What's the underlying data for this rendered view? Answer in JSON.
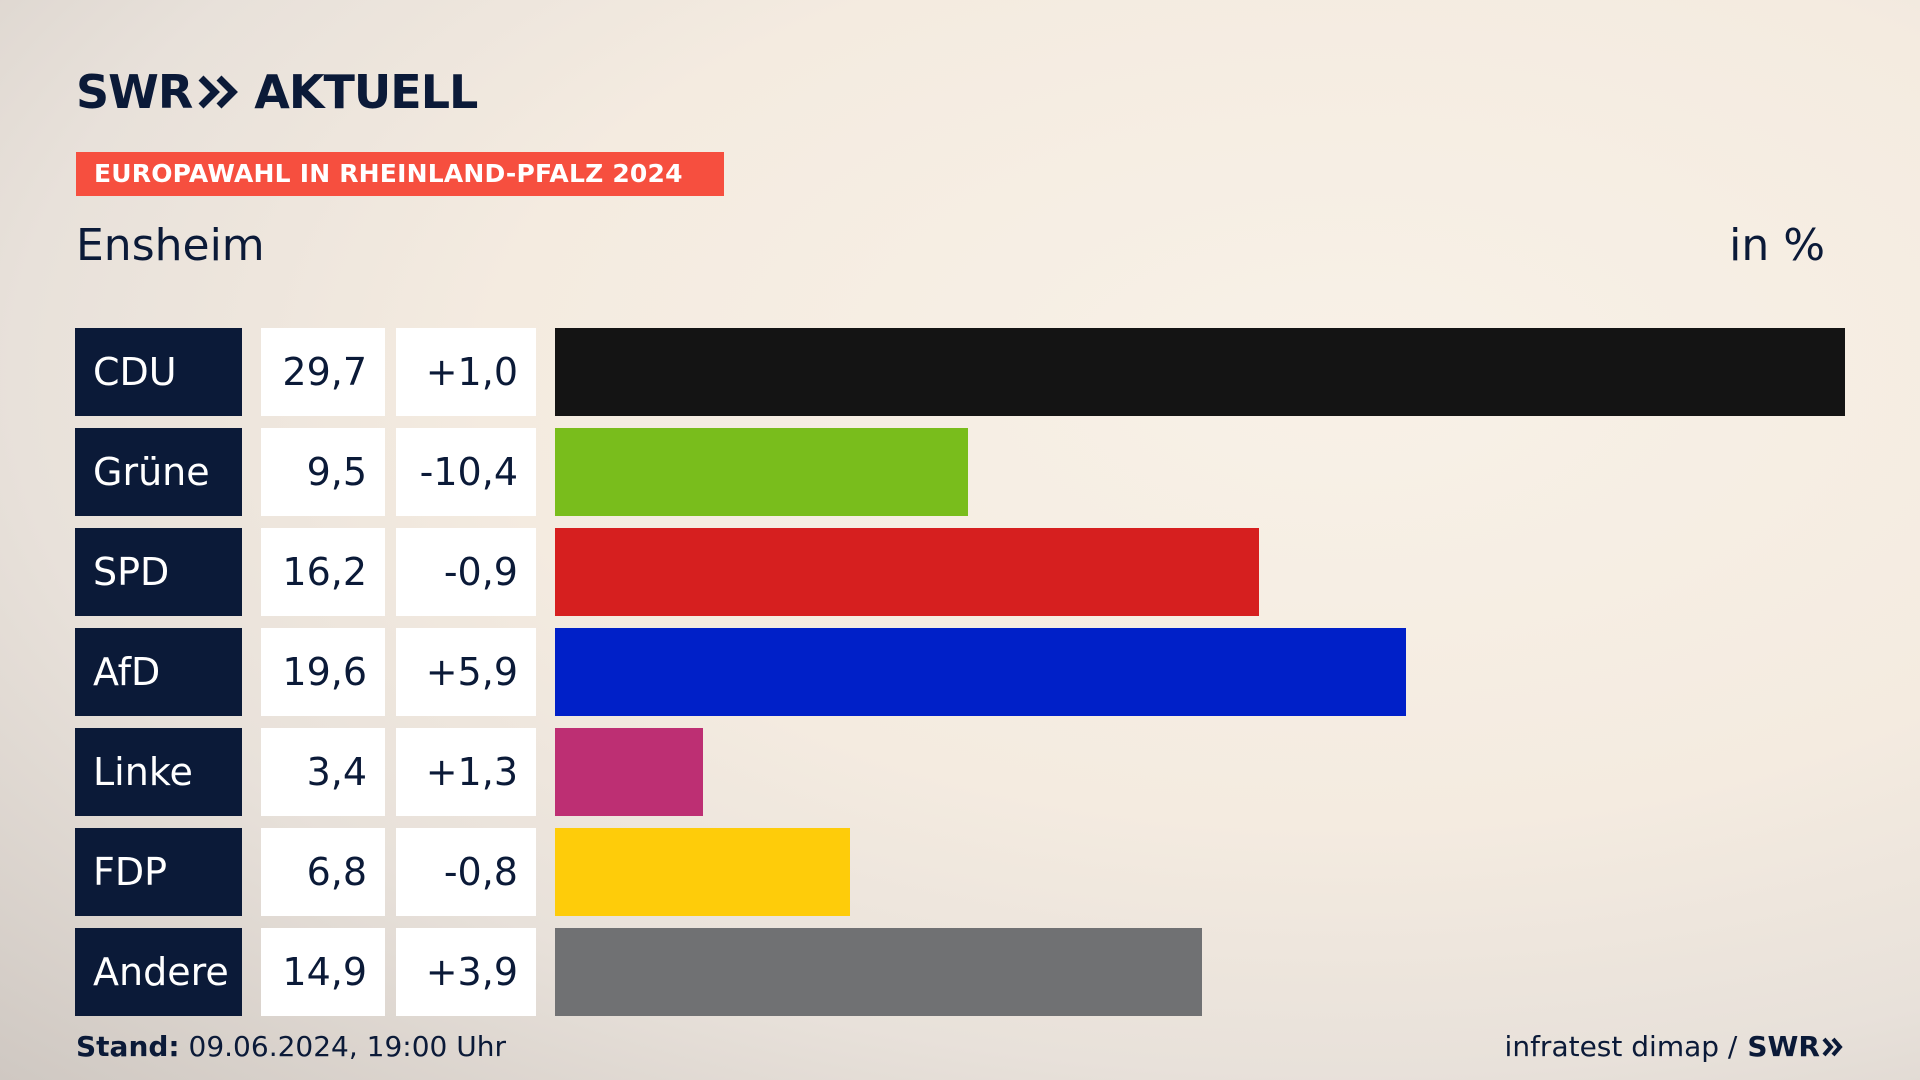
{
  "header": {
    "logo_brand": "SWR",
    "logo_product": "AKTUELL",
    "tag": "EUROPAWAHL IN RHEINLAND-PFALZ 2024",
    "region": "Ensheim",
    "unit": "in %"
  },
  "colors": {
    "navy": "#0b1a38",
    "tag": "#f64f3f"
  },
  "chart_data": {
    "type": "bar",
    "orientation": "horizontal",
    "title": "Europawahl in Rheinland-Pfalz 2024 – Ensheim",
    "unit": "in %",
    "categories": [
      "CDU",
      "Grüne",
      "SPD",
      "AfD",
      "Linke",
      "FDP",
      "Andere"
    ],
    "values": [
      29.7,
      9.5,
      16.2,
      19.6,
      3.4,
      6.8,
      14.9
    ],
    "value_labels": [
      "29,7",
      "9,5",
      "16,2",
      "19,6",
      "3,4",
      "6,8",
      "14,9"
    ],
    "changes": [
      1.0,
      -10.4,
      -0.9,
      5.9,
      1.3,
      -0.8,
      3.9
    ],
    "change_labels": [
      "+1,0",
      "-10,4",
      "-0,9",
      "+5,9",
      "+1,3",
      "-0,8",
      "+3,9"
    ],
    "colors": [
      "#141414",
      "#79bd1c",
      "#d61f1f",
      "#0020c8",
      "#bd2f73",
      "#fecc0a",
      "#707173"
    ],
    "xlim": [
      0,
      29.7
    ]
  },
  "footer": {
    "stand_label": "Stand:",
    "stand_value": "09.06.2024, 19:00 Uhr",
    "source": "infratest dimap /",
    "source_brand": "SWR"
  }
}
